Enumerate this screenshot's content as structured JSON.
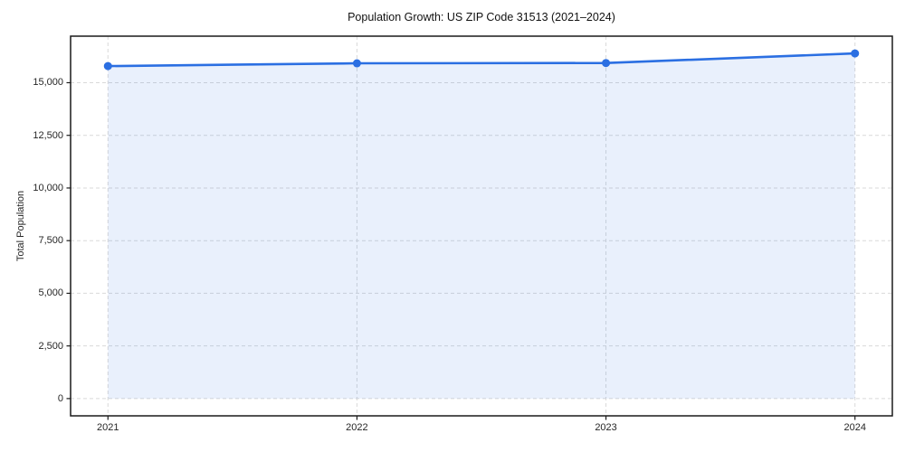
{
  "chart_data": {
    "type": "area",
    "title": "Population Growth: US ZIP Code 31513 (2021–2024)",
    "xlabel": "",
    "ylabel": "Total Population",
    "x": [
      2021,
      2022,
      2023,
      2024
    ],
    "series": [
      {
        "name": "Total Population",
        "values": [
          15790,
          15920,
          15935,
          16390
        ]
      }
    ],
    "xticks": [
      {
        "value": 2021,
        "label": "2021"
      },
      {
        "value": 2022,
        "label": "2022"
      },
      {
        "value": 2023,
        "label": "2023"
      },
      {
        "value": 2024,
        "label": "2024"
      }
    ],
    "yticks": [
      {
        "value": 0,
        "label": "0"
      },
      {
        "value": 2500,
        "label": "2,500"
      },
      {
        "value": 5000,
        "label": "5,000"
      },
      {
        "value": 7500,
        "label": "7,500"
      },
      {
        "value": 10000,
        "label": "10,000"
      },
      {
        "value": 12500,
        "label": "12,500"
      },
      {
        "value": 15000,
        "label": "15,000"
      }
    ],
    "xlim": [
      2020.85,
      2024.15
    ],
    "ylim": [
      -820,
      17210
    ],
    "fill_to": 0,
    "grid": true,
    "legend_position": "none",
    "colors": {
      "line": "#2B6FE2",
      "fill": "rgba(43,111,226,0.10)",
      "grid": "#D9D9D9",
      "spine": "#1A1A1A",
      "tick_label": "#262626",
      "title": "#111111",
      "background": "#FFFFFF"
    }
  }
}
